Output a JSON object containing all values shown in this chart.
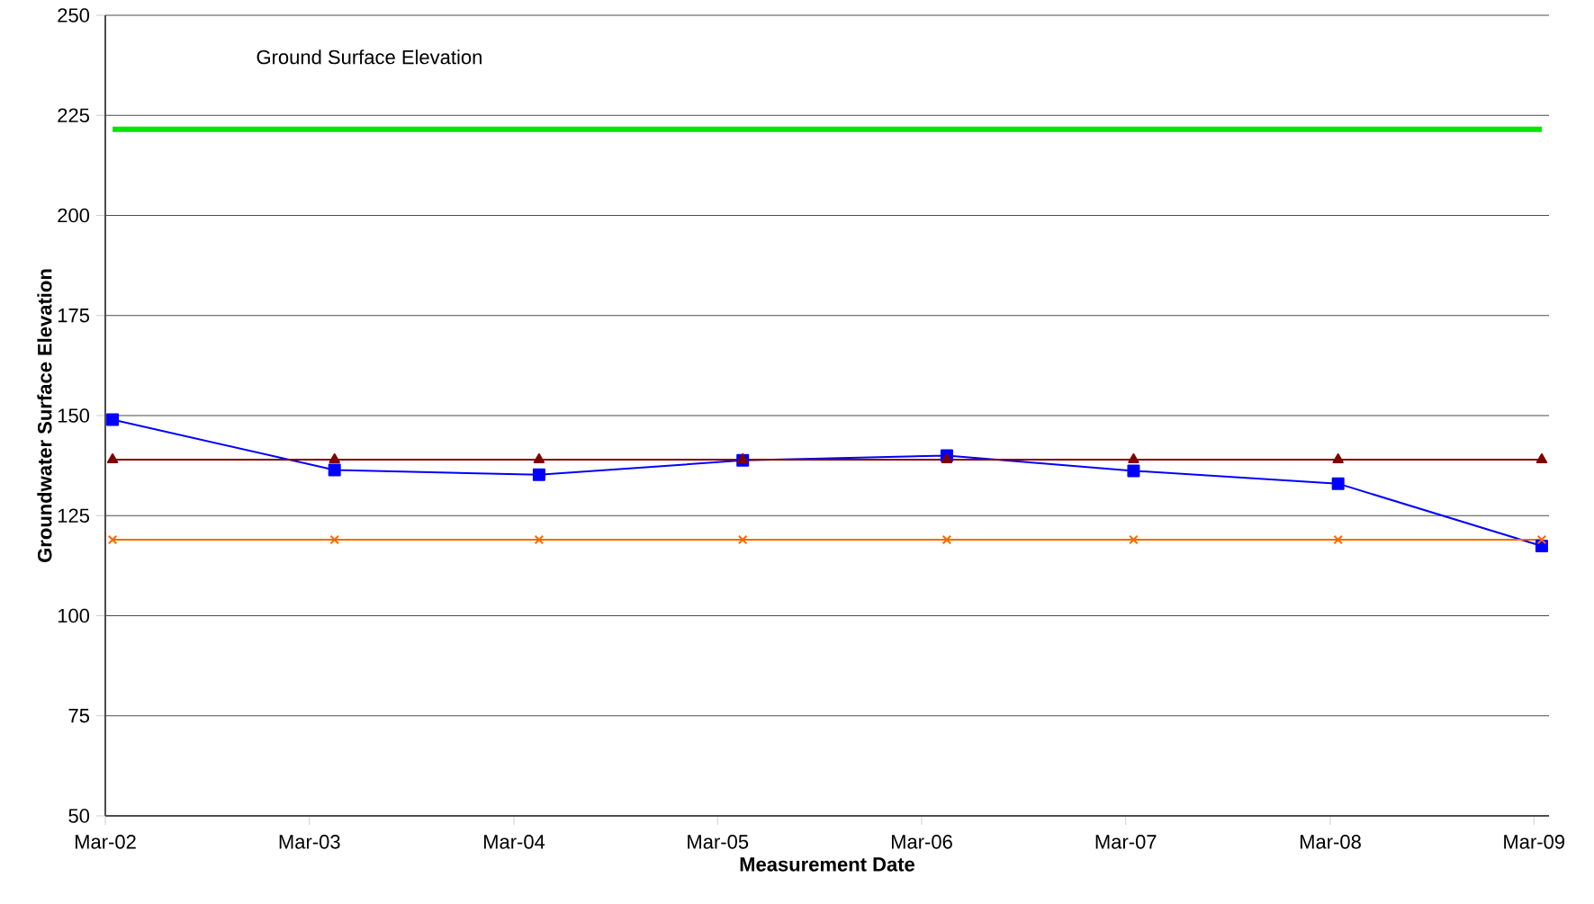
{
  "chart_data": {
    "type": "line",
    "xlabel": "Measurement Date",
    "ylabel": "Groundwater Surface Elevation",
    "annotations": [
      "Ground Surface Elevation"
    ],
    "x": [
      "2002-03-14",
      "2003-04-15",
      "2004-04-15",
      "2005-04-15",
      "2006-04-15",
      "2007-03-15",
      "2008-03-15",
      "2009-03-15"
    ],
    "series": [
      {
        "color": "#0000ff",
        "marker": "square",
        "values": [
          149,
          136.4,
          135.2,
          138.8,
          140,
          136.2,
          133,
          117.4
        ]
      },
      {
        "color": "#800000",
        "marker": "triangle",
        "values": [
          139,
          139,
          139,
          139,
          139,
          139,
          139,
          139
        ]
      },
      {
        "color": "#ff6600",
        "marker": "cross",
        "values": [
          119,
          119,
          119,
          119,
          119,
          119,
          119,
          119
        ]
      },
      {
        "color": "#00e600",
        "marker": "none",
        "x": [
          "2002-03-14",
          "2009-03-15"
        ],
        "values": [
          221.5,
          221.5
        ]
      }
    ],
    "xlim": [
      "2002-03-01",
      "2009-03-28"
    ],
    "xticks": [
      {
        "value": "2002-03-01",
        "label": "Mar-02"
      },
      {
        "value": "2003-03-01",
        "label": "Mar-03"
      },
      {
        "value": "2004-03-01",
        "label": "Mar-04"
      },
      {
        "value": "2005-03-01",
        "label": "Mar-05"
      },
      {
        "value": "2006-03-01",
        "label": "Mar-06"
      },
      {
        "value": "2007-03-01",
        "label": "Mar-07"
      },
      {
        "value": "2008-03-01",
        "label": "Mar-08"
      },
      {
        "value": "2009-03-01",
        "label": "Mar-09"
      }
    ],
    "ylim": [
      50,
      250
    ],
    "yticks": [
      50,
      75,
      100,
      125,
      150,
      175,
      200,
      225,
      250
    ],
    "grid": "y"
  }
}
